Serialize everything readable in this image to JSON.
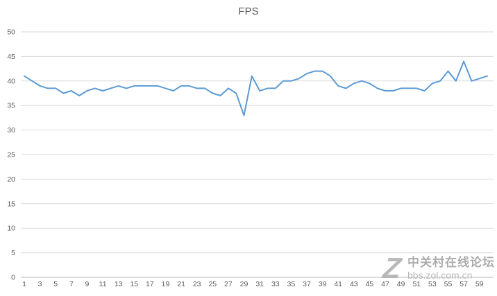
{
  "chart_data": {
    "type": "line",
    "title": "FPS",
    "legend": "none",
    "grid": true,
    "ylim": [
      0,
      50
    ],
    "ytick_step": 5,
    "line_color": "#5B9BD5",
    "grid_color": "#D9D9D9",
    "axis_color": "#BFBFBF",
    "tick_label_color": "#595959",
    "title_color": "#595959",
    "x_labels": [
      "1",
      "3",
      "5",
      "7",
      "9",
      "11",
      "13",
      "15",
      "17",
      "19",
      "21",
      "23",
      "25",
      "27",
      "29",
      "31",
      "33",
      "35",
      "37",
      "39",
      "41",
      "43",
      "45",
      "47",
      "49",
      "51",
      "53",
      "55",
      "57",
      "59"
    ],
    "series": [
      {
        "name": "FPS",
        "values": [
          41,
          40,
          39,
          38.5,
          38.5,
          37.5,
          38,
          37,
          38,
          38.5,
          38,
          38.5,
          39,
          38.5,
          39,
          39,
          39,
          39,
          38.5,
          38,
          39,
          39,
          38.5,
          38.5,
          37.5,
          37,
          38.5,
          37.5,
          33,
          41,
          38,
          38.5,
          38.5,
          40,
          40,
          40.5,
          41.5,
          42,
          42,
          41,
          39,
          38.5,
          39.5,
          40,
          39.5,
          38.5,
          38,
          38,
          38.5,
          38.5,
          38.5,
          38,
          39.5,
          40,
          42,
          40,
          44,
          40,
          40.5,
          41
        ]
      }
    ]
  },
  "watermark": {
    "logo_letter": "Z",
    "line1": "中关村在线论坛",
    "line2": "bbs.zol.com.cn"
  }
}
